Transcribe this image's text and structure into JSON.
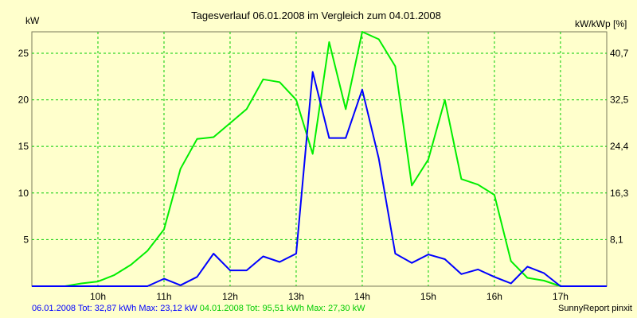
{
  "chart_data": {
    "type": "line",
    "title": "Tagesverlauf 06.01.2008 im Vergleich zum 04.01.2008",
    "ylabel_left": "kW",
    "ylabel_right": "kW/kWp [%]",
    "ylim": [
      0,
      27.3
    ],
    "y_ticks_left": [
      5,
      10,
      15,
      20,
      25
    ],
    "y_ticks_right": [
      "8,1",
      "16,3",
      "24,4",
      "32,5",
      "40,7"
    ],
    "x_range_hours": [
      9.0,
      17.7
    ],
    "x_ticks": [
      {
        "hour": 10,
        "label": "10h"
      },
      {
        "hour": 11,
        "label": "11h"
      },
      {
        "hour": 12,
        "label": "12h"
      },
      {
        "hour": 13,
        "label": "13h"
      },
      {
        "hour": 14,
        "label": "14h"
      },
      {
        "hour": 15,
        "label": "15h"
      },
      {
        "hour": 16,
        "label": "16h"
      },
      {
        "hour": 17,
        "label": "17h"
      }
    ],
    "grid": true,
    "series": [
      {
        "name": "06.01.2008",
        "color": "#0000ff",
        "x": [
          9.0,
          9.25,
          9.5,
          9.75,
          10.0,
          10.25,
          10.5,
          10.75,
          11.0,
          11.25,
          11.5,
          11.75,
          12.0,
          12.25,
          12.5,
          12.75,
          13.0,
          13.25,
          13.5,
          13.75,
          14.0,
          14.25,
          14.5,
          14.75,
          15.0,
          15.25,
          15.5,
          15.75,
          16.0,
          16.25,
          16.5,
          16.75,
          17.0,
          17.25,
          17.5,
          17.7
        ],
        "values": [
          0,
          0,
          0,
          0,
          0,
          0,
          0,
          0,
          0.8,
          0.1,
          1.0,
          3.5,
          1.7,
          1.7,
          3.2,
          2.6,
          3.5,
          23.0,
          15.9,
          15.9,
          21.1,
          13.7,
          3.5,
          2.5,
          3.4,
          2.9,
          1.3,
          1.8,
          1.0,
          0.3,
          2.1,
          1.4,
          0,
          0,
          0,
          0
        ]
      },
      {
        "name": "04.01.2008",
        "color": "#00ee00",
        "x": [
          9.0,
          9.25,
          9.5,
          9.75,
          10.0,
          10.25,
          10.5,
          10.75,
          11.0,
          11.25,
          11.5,
          11.75,
          12.0,
          12.25,
          12.5,
          12.75,
          13.0,
          13.25,
          13.5,
          13.75,
          14.0,
          14.25,
          14.5,
          14.75,
          15.0,
          15.25,
          15.5,
          15.75,
          16.0,
          16.25,
          16.5,
          16.75,
          17.0,
          17.25,
          17.5,
          17.7
        ],
        "values": [
          0,
          0,
          0,
          0.3,
          0.5,
          1.2,
          2.3,
          3.8,
          6.1,
          12.6,
          15.8,
          16.0,
          17.5,
          19.0,
          22.2,
          21.9,
          20.0,
          14.2,
          26.2,
          19.0,
          27.3,
          26.5,
          23.6,
          10.8,
          13.6,
          20.0,
          11.5,
          10.9,
          9.8,
          2.7,
          0.9,
          0.6,
          0,
          0,
          0,
          0
        ]
      }
    ]
  },
  "footer": {
    "blue_stats": "06.01.2008 Tot: 32,87 kWh Max: 23,12 kW",
    "green_stats": "04.01.2008 Tot: 95,51 kWh Max: 27,30 kW",
    "credit": "SunnyReport pinxit"
  },
  "colors": {
    "background": "#ffffcc",
    "grid": "#00cc00",
    "blue": "#0000ff",
    "green": "#00ee00"
  }
}
